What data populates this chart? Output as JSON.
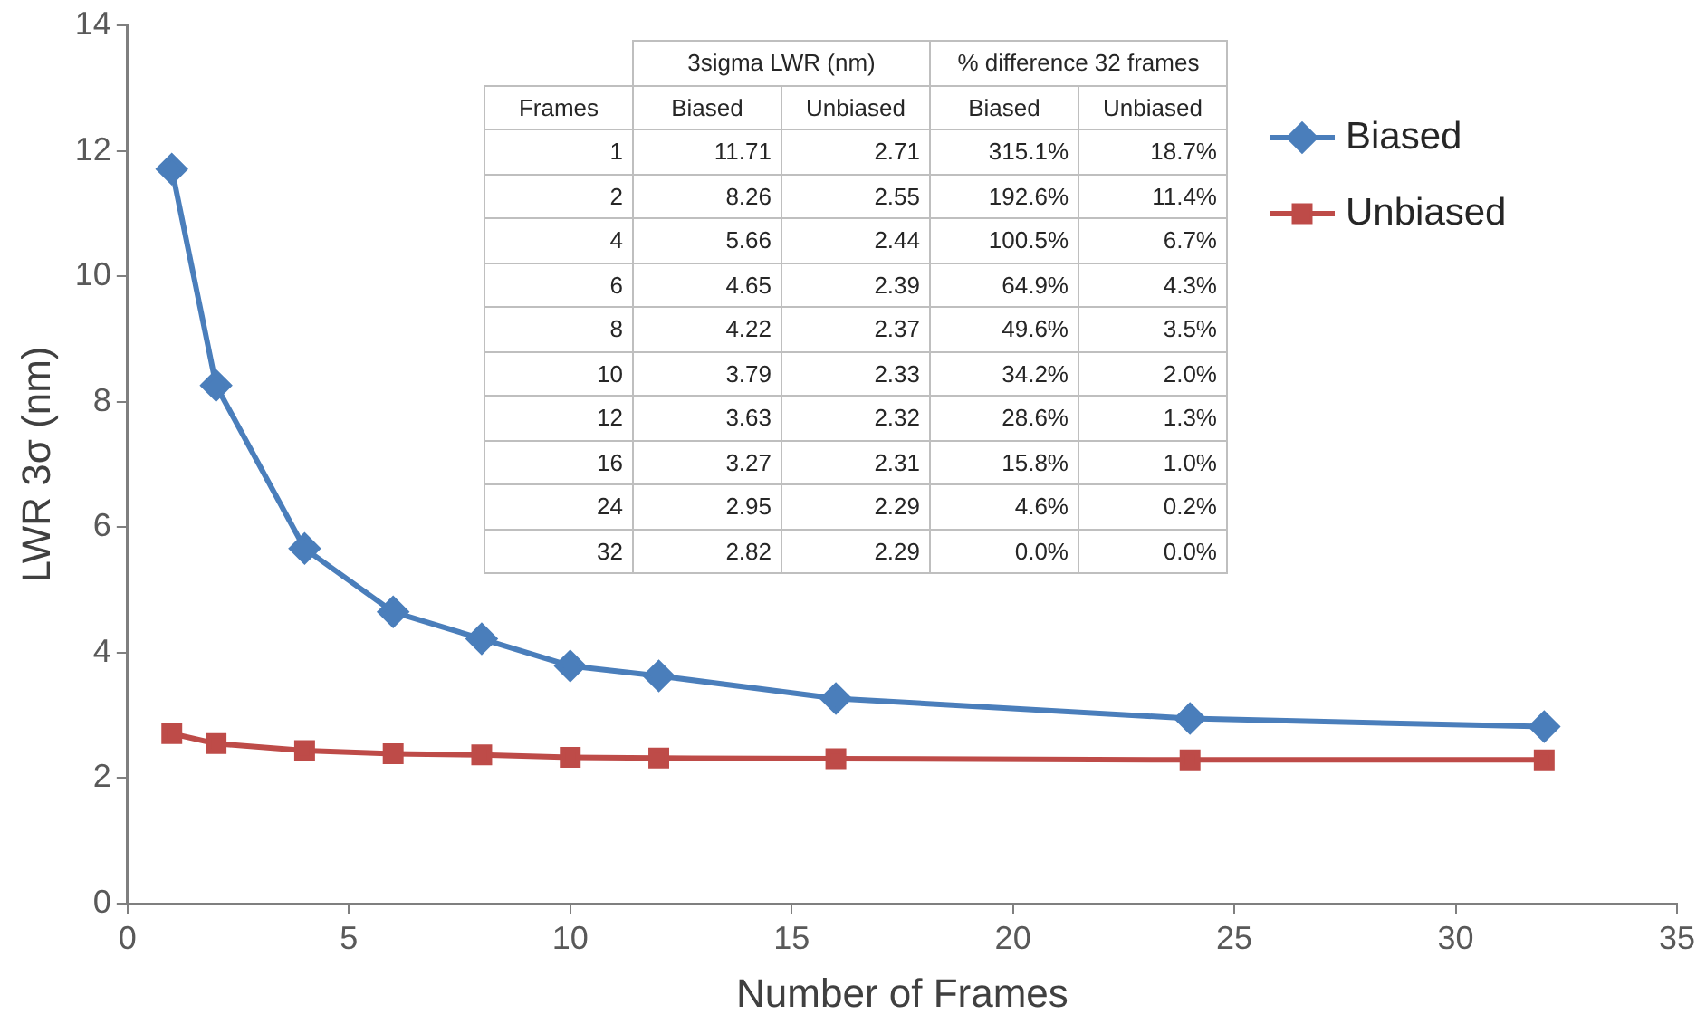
{
  "chart_data": {
    "type": "line",
    "xlabel": "Number of Frames",
    "ylabel": "LWR 3σ (nm)",
    "x": [
      1,
      2,
      4,
      6,
      8,
      10,
      12,
      16,
      24,
      32
    ],
    "series": [
      {
        "name": "Biased",
        "color": "#4a7ebb",
        "marker": "diamond",
        "values": [
          11.71,
          8.26,
          5.66,
          4.65,
          4.22,
          3.79,
          3.63,
          3.27,
          2.95,
          2.82
        ]
      },
      {
        "name": "Unbiased",
        "color": "#be4b48",
        "marker": "square",
        "values": [
          2.71,
          2.55,
          2.44,
          2.39,
          2.37,
          2.33,
          2.32,
          2.31,
          2.29,
          2.29
        ]
      }
    ],
    "xlim": [
      0,
      35
    ],
    "xticks": [
      0,
      5,
      10,
      15,
      20,
      25,
      30,
      35
    ],
    "ylim": [
      0,
      14
    ],
    "yticks": [
      0,
      2,
      4,
      6,
      8,
      10,
      12,
      14
    ],
    "legend": "top right",
    "annotations": [
      "3sigma LWR (nm)",
      "% difference 32 frames",
      "Frames",
      "Biased",
      "Unbiased",
      "Biased",
      "Unbiased",
      "1",
      "11.71",
      "2.71",
      "315.1%",
      "18.7%",
      "2",
      "8.26",
      "2.55",
      "192.6%",
      "11.4%",
      "4",
      "5.66",
      "2.44",
      "100.5%",
      "6.7%",
      "6",
      "4.65",
      "2.39",
      "64.9%",
      "4.3%",
      "8",
      "4.22",
      "2.37",
      "49.6%",
      "3.5%",
      "10",
      "3.79",
      "2.33",
      "34.2%",
      "2.0%",
      "12",
      "3.63",
      "2.32",
      "28.6%",
      "1.3%",
      "16",
      "3.27",
      "2.31",
      "15.8%",
      "1.0%",
      "24",
      "2.95",
      "2.29",
      "4.6%",
      "0.2%",
      "32",
      "2.82",
      "2.29",
      "0.0%",
      "0.0%"
    ]
  }
}
